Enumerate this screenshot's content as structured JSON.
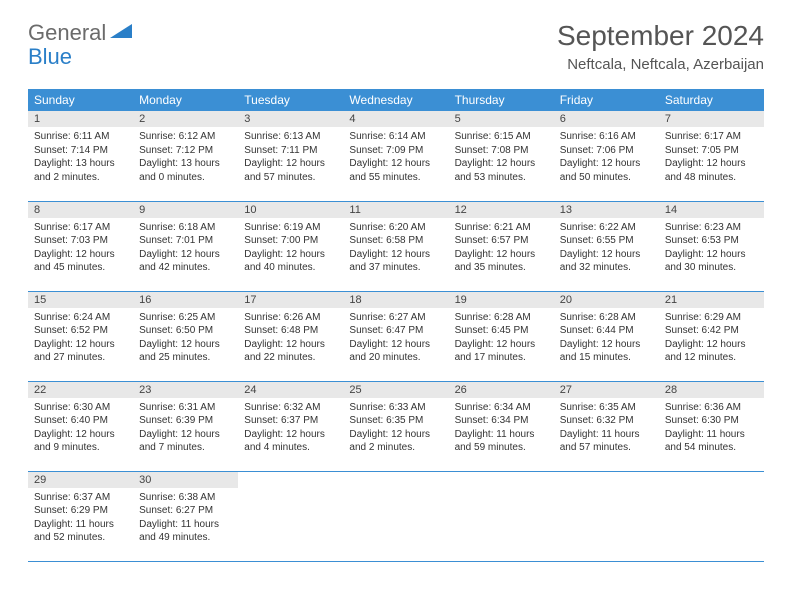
{
  "logo": {
    "general": "General",
    "blue": "Blue"
  },
  "title": "September 2024",
  "location": "Neftcala, Neftcala, Azerbaijan",
  "colors": {
    "header_bg": "#3b8fd4",
    "header_text": "#ffffff",
    "daynum_bg": "#e8e8e8",
    "border": "#3b8fd4",
    "logo_gray": "#6b6b6b",
    "logo_blue": "#2a7fc8"
  },
  "weekdays": [
    "Sunday",
    "Monday",
    "Tuesday",
    "Wednesday",
    "Thursday",
    "Friday",
    "Saturday"
  ],
  "days": [
    {
      "n": "1",
      "sr": "6:11 AM",
      "ss": "7:14 PM",
      "dl": "13 hours and 2 minutes."
    },
    {
      "n": "2",
      "sr": "6:12 AM",
      "ss": "7:12 PM",
      "dl": "13 hours and 0 minutes."
    },
    {
      "n": "3",
      "sr": "6:13 AM",
      "ss": "7:11 PM",
      "dl": "12 hours and 57 minutes."
    },
    {
      "n": "4",
      "sr": "6:14 AM",
      "ss": "7:09 PM",
      "dl": "12 hours and 55 minutes."
    },
    {
      "n": "5",
      "sr": "6:15 AM",
      "ss": "7:08 PM",
      "dl": "12 hours and 53 minutes."
    },
    {
      "n": "6",
      "sr": "6:16 AM",
      "ss": "7:06 PM",
      "dl": "12 hours and 50 minutes."
    },
    {
      "n": "7",
      "sr": "6:17 AM",
      "ss": "7:05 PM",
      "dl": "12 hours and 48 minutes."
    },
    {
      "n": "8",
      "sr": "6:17 AM",
      "ss": "7:03 PM",
      "dl": "12 hours and 45 minutes."
    },
    {
      "n": "9",
      "sr": "6:18 AM",
      "ss": "7:01 PM",
      "dl": "12 hours and 42 minutes."
    },
    {
      "n": "10",
      "sr": "6:19 AM",
      "ss": "7:00 PM",
      "dl": "12 hours and 40 minutes."
    },
    {
      "n": "11",
      "sr": "6:20 AM",
      "ss": "6:58 PM",
      "dl": "12 hours and 37 minutes."
    },
    {
      "n": "12",
      "sr": "6:21 AM",
      "ss": "6:57 PM",
      "dl": "12 hours and 35 minutes."
    },
    {
      "n": "13",
      "sr": "6:22 AM",
      "ss": "6:55 PM",
      "dl": "12 hours and 32 minutes."
    },
    {
      "n": "14",
      "sr": "6:23 AM",
      "ss": "6:53 PM",
      "dl": "12 hours and 30 minutes."
    },
    {
      "n": "15",
      "sr": "6:24 AM",
      "ss": "6:52 PM",
      "dl": "12 hours and 27 minutes."
    },
    {
      "n": "16",
      "sr": "6:25 AM",
      "ss": "6:50 PM",
      "dl": "12 hours and 25 minutes."
    },
    {
      "n": "17",
      "sr": "6:26 AM",
      "ss": "6:48 PM",
      "dl": "12 hours and 22 minutes."
    },
    {
      "n": "18",
      "sr": "6:27 AM",
      "ss": "6:47 PM",
      "dl": "12 hours and 20 minutes."
    },
    {
      "n": "19",
      "sr": "6:28 AM",
      "ss": "6:45 PM",
      "dl": "12 hours and 17 minutes."
    },
    {
      "n": "20",
      "sr": "6:28 AM",
      "ss": "6:44 PM",
      "dl": "12 hours and 15 minutes."
    },
    {
      "n": "21",
      "sr": "6:29 AM",
      "ss": "6:42 PM",
      "dl": "12 hours and 12 minutes."
    },
    {
      "n": "22",
      "sr": "6:30 AM",
      "ss": "6:40 PM",
      "dl": "12 hours and 9 minutes."
    },
    {
      "n": "23",
      "sr": "6:31 AM",
      "ss": "6:39 PM",
      "dl": "12 hours and 7 minutes."
    },
    {
      "n": "24",
      "sr": "6:32 AM",
      "ss": "6:37 PM",
      "dl": "12 hours and 4 minutes."
    },
    {
      "n": "25",
      "sr": "6:33 AM",
      "ss": "6:35 PM",
      "dl": "12 hours and 2 minutes."
    },
    {
      "n": "26",
      "sr": "6:34 AM",
      "ss": "6:34 PM",
      "dl": "11 hours and 59 minutes."
    },
    {
      "n": "27",
      "sr": "6:35 AM",
      "ss": "6:32 PM",
      "dl": "11 hours and 57 minutes."
    },
    {
      "n": "28",
      "sr": "6:36 AM",
      "ss": "6:30 PM",
      "dl": "11 hours and 54 minutes."
    },
    {
      "n": "29",
      "sr": "6:37 AM",
      "ss": "6:29 PM",
      "dl": "11 hours and 52 minutes."
    },
    {
      "n": "30",
      "sr": "6:38 AM",
      "ss": "6:27 PM",
      "dl": "11 hours and 49 minutes."
    }
  ],
  "labels": {
    "sunrise": "Sunrise:",
    "sunset": "Sunset:",
    "daylight": "Daylight:"
  }
}
